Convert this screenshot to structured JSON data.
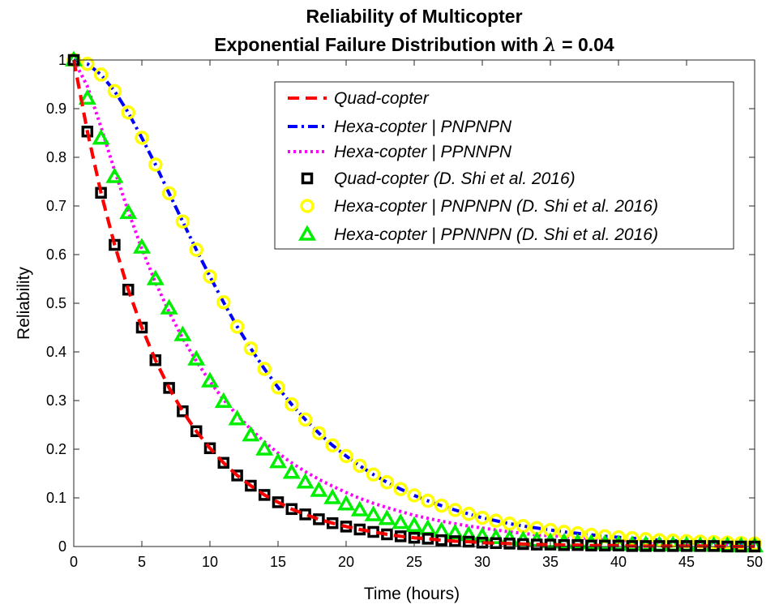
{
  "chart_data": {
    "type": "line",
    "title_line1": "Reliability of Multicopter",
    "title_line2_prefix": "Exponential Failure Distribution with ",
    "title_lambda": "λ",
    "title_line2_suffix": " = 0.04",
    "xlabel": "Time (hours)",
    "ylabel": "Reliability",
    "xlim": [
      0,
      50
    ],
    "ylim": [
      0,
      1
    ],
    "xticks": [
      "0",
      "5",
      "10",
      "15",
      "20",
      "25",
      "30",
      "35",
      "40",
      "45",
      "50"
    ],
    "yticks": [
      "0",
      "0.1",
      "0.2",
      "0.3",
      "0.4",
      "0.5",
      "0.6",
      "0.7",
      "0.8",
      "0.9",
      "1"
    ],
    "grid": false,
    "legend_position": "top-right",
    "x": [
      0,
      1,
      2,
      3,
      4,
      5,
      6,
      7,
      8,
      9,
      10,
      11,
      12,
      13,
      14,
      15,
      16,
      17,
      18,
      19,
      20,
      21,
      22,
      23,
      24,
      25,
      26,
      27,
      28,
      29,
      30,
      31,
      32,
      33,
      34,
      35,
      36,
      37,
      38,
      39,
      40,
      41,
      42,
      43,
      44,
      45,
      46,
      47,
      48,
      49,
      50
    ],
    "series": [
      {
        "name": "Quad-copter",
        "style": "dashed-line",
        "color": "#ff0000",
        "values": [
          1.0,
          0.853,
          0.727,
          0.62,
          0.528,
          0.45,
          0.383,
          0.326,
          0.278,
          0.237,
          0.202,
          0.172,
          0.146,
          0.125,
          0.106,
          0.091,
          0.077,
          0.066,
          0.056,
          0.048,
          0.041,
          0.035,
          0.03,
          0.025,
          0.021,
          0.018,
          0.016,
          0.013,
          0.011,
          0.01,
          0.008,
          0.007,
          0.006,
          0.005,
          0.004,
          0.004,
          0.003,
          0.003,
          0.002,
          0.002,
          0.002,
          0.001,
          0.001,
          0.001,
          0.001,
          0.001,
          0.001,
          0.001,
          0.0,
          0.0,
          0.0
        ]
      },
      {
        "name": "Hexa-copter | PNPNPN",
        "style": "dashdot-line",
        "color": "#0000ff",
        "values": [
          1.0,
          0.992,
          0.97,
          0.936,
          0.892,
          0.84,
          0.785,
          0.726,
          0.668,
          0.61,
          0.555,
          0.502,
          0.452,
          0.407,
          0.365,
          0.327,
          0.292,
          0.261,
          0.233,
          0.208,
          0.186,
          0.166,
          0.148,
          0.132,
          0.118,
          0.105,
          0.094,
          0.084,
          0.075,
          0.067,
          0.059,
          0.053,
          0.047,
          0.042,
          0.038,
          0.034,
          0.03,
          0.027,
          0.024,
          0.021,
          0.019,
          0.017,
          0.015,
          0.013,
          0.012,
          0.011,
          0.01,
          0.009,
          0.008,
          0.007,
          0.006
        ]
      },
      {
        "name": "Hexa-copter | PPNNPN",
        "style": "dotted-line",
        "color": "#ff00ff",
        "values": [
          1.0,
          0.946,
          0.862,
          0.773,
          0.689,
          0.612,
          0.543,
          0.482,
          0.428,
          0.381,
          0.339,
          0.302,
          0.27,
          0.241,
          0.215,
          0.192,
          0.172,
          0.154,
          0.138,
          0.124,
          0.111,
          0.099,
          0.089,
          0.08,
          0.072,
          0.064,
          0.058,
          0.052,
          0.047,
          0.042,
          0.038,
          0.034,
          0.03,
          0.027,
          0.024,
          0.022,
          0.02,
          0.018,
          0.016,
          0.014,
          0.013,
          0.012,
          0.01,
          0.009,
          0.008,
          0.008,
          0.007,
          0.006,
          0.005,
          0.005,
          0.004
        ]
      },
      {
        "name": "Quad-copter (D. Shi et al. 2016)",
        "style": "square-marker",
        "color": "#000000",
        "values": [
          1.0,
          0.853,
          0.727,
          0.62,
          0.528,
          0.45,
          0.383,
          0.326,
          0.278,
          0.237,
          0.202,
          0.172,
          0.146,
          0.125,
          0.106,
          0.091,
          0.077,
          0.066,
          0.056,
          0.048,
          0.041,
          0.035,
          0.03,
          0.025,
          0.021,
          0.018,
          0.016,
          0.013,
          0.011,
          0.01,
          0.008,
          0.007,
          0.006,
          0.005,
          0.004,
          0.004,
          0.003,
          0.003,
          0.002,
          0.002,
          0.002,
          0.001,
          0.001,
          0.001,
          0.001,
          0.001,
          0.001,
          0.001,
          0.0,
          0.0,
          0.0
        ]
      },
      {
        "name": "Hexa-copter | PNPNPN (D. Shi et al. 2016)",
        "style": "circle-marker",
        "color": "#ffff00",
        "values": [
          1.0,
          0.992,
          0.97,
          0.936,
          0.892,
          0.84,
          0.785,
          0.726,
          0.668,
          0.61,
          0.555,
          0.502,
          0.452,
          0.407,
          0.365,
          0.327,
          0.292,
          0.261,
          0.233,
          0.208,
          0.186,
          0.166,
          0.148,
          0.132,
          0.118,
          0.105,
          0.094,
          0.084,
          0.075,
          0.067,
          0.059,
          0.053,
          0.047,
          0.042,
          0.038,
          0.034,
          0.03,
          0.027,
          0.024,
          0.021,
          0.019,
          0.017,
          0.015,
          0.013,
          0.012,
          0.011,
          0.01,
          0.009,
          0.008,
          0.007,
          0.006
        ]
      },
      {
        "name": "Hexa-copter | PPNNPN (D. Shi et al. 2016)",
        "style": "triangle-marker",
        "color": "#00ee00",
        "values": [
          1.0,
          0.921,
          0.839,
          0.76,
          0.686,
          0.615,
          0.55,
          0.49,
          0.435,
          0.385,
          0.34,
          0.298,
          0.262,
          0.229,
          0.2,
          0.174,
          0.152,
          0.132,
          0.115,
          0.1,
          0.087,
          0.075,
          0.065,
          0.057,
          0.049,
          0.043,
          0.037,
          0.032,
          0.028,
          0.024,
          0.021,
          0.018,
          0.016,
          0.014,
          0.012,
          0.01,
          0.009,
          0.008,
          0.007,
          0.006,
          0.005,
          0.004,
          0.004,
          0.003,
          0.003,
          0.003,
          0.002,
          0.002,
          0.002,
          0.001,
          0.001
        ]
      }
    ]
  }
}
